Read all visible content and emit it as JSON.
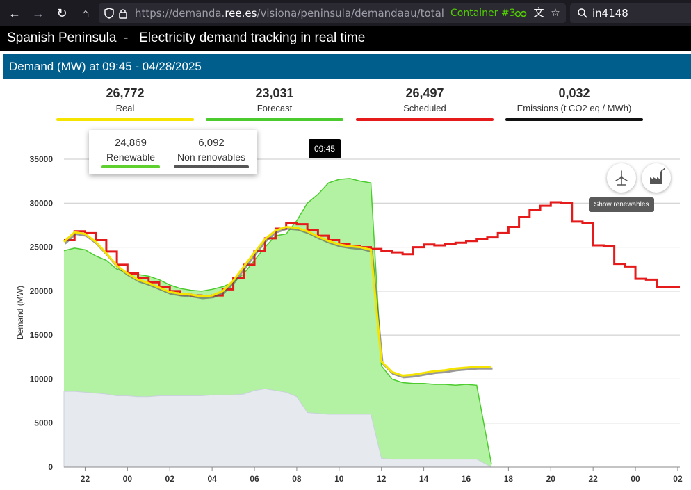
{
  "browser": {
    "url_prefix": "https://demanda.",
    "url_host": "ree.es",
    "url_path": "/visiona/peninsula/demandaau/total",
    "container": "Container #3",
    "search_text": "in4148"
  },
  "page": {
    "region": "Spanish Peninsula",
    "separator": "-",
    "subtitle": "Electricity demand tracking in real time"
  },
  "titlebar": {
    "prefix": "Demand (MW)",
    "rest": "at 09:45 - 04/28/2025"
  },
  "legend": [
    {
      "value": "26,772",
      "label": "Real",
      "color": "#f5e400"
    },
    {
      "value": "23,031",
      "label": "Forecast",
      "color": "#4bcb2d"
    },
    {
      "value": "26,497",
      "label": "Scheduled",
      "color": "#e51a1a"
    },
    {
      "value": "0,032",
      "label": "Emissions (t CO2 eq / MWh)",
      "color": "#111111"
    }
  ],
  "popup": {
    "renewable": {
      "value": "24,869",
      "label": "Renewable",
      "color": "#5fd12f"
    },
    "non_renewable": {
      "value": "6,092",
      "label": "Non renovables",
      "color": "#555555"
    }
  },
  "time_bubble": "09:45",
  "tooltip": "Show renewables",
  "icons": {
    "renewables_button": "wind-turbine-icon",
    "non_renewables_button": "factory-icon"
  },
  "chart_data": {
    "type": "line",
    "ylabel": "Demand (MW)",
    "ylim": [
      0,
      35000
    ],
    "y_ticks": [
      0,
      5000,
      10000,
      15000,
      20000,
      25000,
      30000,
      35000
    ],
    "y_tick_labels": [
      "0",
      "5000",
      "10000",
      "15000",
      "20000",
      "25000",
      "30000",
      "35000"
    ],
    "x_ticks": [
      "22",
      "00",
      "02",
      "04",
      "06",
      "08",
      "10",
      "12",
      "14",
      "16",
      "18",
      "20",
      "22",
      "00",
      "02"
    ],
    "x_range_hours": [
      21,
      50.1
    ],
    "grid": true,
    "series": [
      {
        "name": "Scheduled",
        "color": "#e51a1a",
        "x": [
          21,
          21.5,
          22,
          22.5,
          23,
          23.5,
          24,
          24.5,
          25,
          25.5,
          26,
          26.5,
          27,
          27.5,
          28,
          28.5,
          29,
          29.5,
          30,
          30.5,
          31,
          31.5,
          32,
          32.5,
          33,
          33.5,
          34,
          34.5,
          35,
          35.5,
          36,
          36.5,
          37,
          37.5,
          38,
          38.5,
          39,
          39.5,
          40,
          40.5,
          41,
          41.5,
          42,
          42.5,
          43,
          43.5,
          44,
          44.5,
          45,
          45.5,
          46,
          46.5,
          47,
          47.5,
          48,
          48.5,
          49,
          49.5,
          50.1
        ],
        "values": [
          25800,
          26800,
          26600,
          25800,
          24500,
          23000,
          22000,
          21500,
          21000,
          20500,
          20000,
          19600,
          19500,
          19400,
          19500,
          20200,
          21500,
          23000,
          24600,
          26000,
          27100,
          27700,
          27600,
          26900,
          26300,
          25800,
          25400,
          25100,
          25000,
          24800,
          24600,
          24400,
          24200,
          25000,
          25300,
          25200,
          25400,
          25500,
          25700,
          25900,
          26100,
          26600,
          27300,
          28400,
          29200,
          29700,
          30100,
          30000,
          27900,
          27700,
          25200,
          25100,
          23100,
          22800,
          21400,
          21300,
          20500,
          20500,
          20500
        ]
      },
      {
        "name": "Real",
        "color": "#f5e400",
        "x": [
          21,
          21.5,
          22,
          22.5,
          23,
          23.5,
          24,
          24.5,
          25,
          25.5,
          26,
          26.5,
          27,
          27.5,
          28,
          28.5,
          29,
          29.5,
          30,
          30.5,
          31,
          31.5,
          32,
          32.5,
          33,
          33.5,
          34,
          34.5,
          35,
          35.5,
          36,
          36.5,
          37,
          37.5,
          38,
          38.5,
          39,
          39.5,
          40,
          40.5,
          41.2
        ],
        "values": [
          25600,
          26700,
          26500,
          25600,
          24300,
          22900,
          22000,
          21300,
          20900,
          20400,
          19900,
          19700,
          19600,
          19400,
          19500,
          20000,
          21200,
          22800,
          24400,
          25900,
          26900,
          27300,
          27200,
          26800,
          26200,
          25700,
          25300,
          25100,
          25000,
          24700,
          12000,
          10800,
          10400,
          10500,
          10700,
          10900,
          11000,
          11200,
          11300,
          11400,
          11400
        ]
      },
      {
        "name": "Forecast",
        "color": "#4bcb2d",
        "x": [
          21,
          21.5,
          22,
          22.5,
          23,
          23.5,
          24,
          24.5,
          25,
          25.5,
          26,
          26.5,
          27,
          27.5,
          28,
          28.5,
          29,
          29.5,
          30,
          30.5,
          31,
          31.5,
          32,
          32.5,
          33,
          33.5,
          34,
          34.5,
          35,
          35.5,
          36,
          36.5,
          37,
          37.5,
          38,
          38.5,
          39,
          39.5,
          40,
          40.5,
          41.2
        ],
        "values": [
          24600,
          24900,
          24700,
          24000,
          23500,
          22500,
          22100,
          21900,
          21700,
          21300,
          20700,
          20300,
          20100,
          20000,
          20200,
          20500,
          21000,
          22000,
          23500,
          25000,
          26300,
          26500,
          28000,
          30000,
          31000,
          32300,
          32700,
          32800,
          32500,
          32300,
          11500,
          10000,
          9600,
          9500,
          9500,
          9400,
          9400,
          9300,
          9400,
          9300,
          300
        ]
      },
      {
        "name": "Non renovables",
        "color": "#c9d1db",
        "x": [
          21,
          21.5,
          22,
          22.5,
          23,
          23.5,
          24,
          24.5,
          25,
          25.5,
          26,
          26.5,
          27,
          27.5,
          28,
          28.5,
          29,
          29.5,
          30,
          30.5,
          31,
          31.5,
          32,
          32.5,
          33,
          33.5,
          34,
          34.5,
          35,
          35.5,
          36,
          36.5,
          37,
          37.5,
          38,
          38.5,
          39,
          39.5,
          40,
          40.5,
          41.2
        ],
        "values": [
          8600,
          8600,
          8500,
          8400,
          8300,
          8100,
          8100,
          8000,
          8000,
          8100,
          8100,
          8100,
          8100,
          8100,
          8200,
          8200,
          8200,
          8300,
          8700,
          8900,
          8700,
          8500,
          8000,
          6200,
          6100,
          6000,
          6000,
          6000,
          6000,
          6000,
          1000,
          900,
          900,
          900,
          900,
          900,
          900,
          900,
          900,
          900,
          0
        ]
      }
    ]
  }
}
